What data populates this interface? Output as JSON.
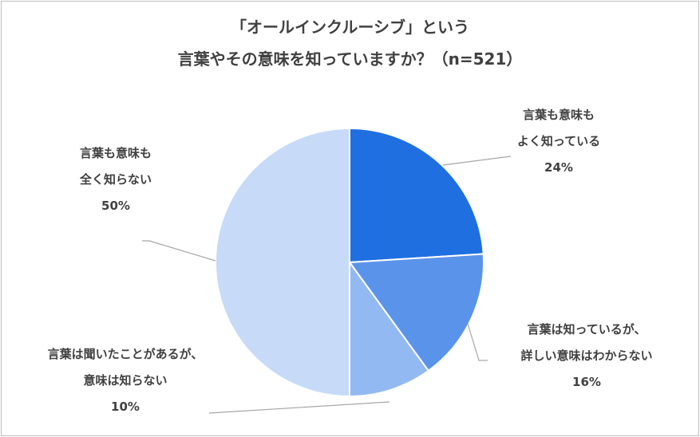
{
  "chart_data": {
    "type": "pie",
    "title_lines": [
      "「オールインクルーシブ」という",
      "言葉やその意味を知っていますか？（n=521）"
    ],
    "slices": [
      {
        "label_lines": [
          "言葉も意味も",
          "よく知っている"
        ],
        "value": 24,
        "value_label": "24%",
        "color": "#1f6fe0"
      },
      {
        "label_lines": [
          "言葉は知っているが、",
          "詳しい意味はわからない"
        ],
        "value": 16,
        "value_label": "16%",
        "color": "#5a94ea"
      },
      {
        "label_lines": [
          "言葉は聞いたことがあるが、",
          "意味は知らない"
        ],
        "value": 10,
        "value_label": "10%",
        "color": "#93b9f2"
      },
      {
        "label_lines": [
          "言葉も意味も",
          "全く知らない"
        ],
        "value": 50,
        "value_label": "50%",
        "color": "#c7daf7"
      }
    ],
    "start_angle": "12 o'clock",
    "direction": "clockwise",
    "legend": "none"
  }
}
